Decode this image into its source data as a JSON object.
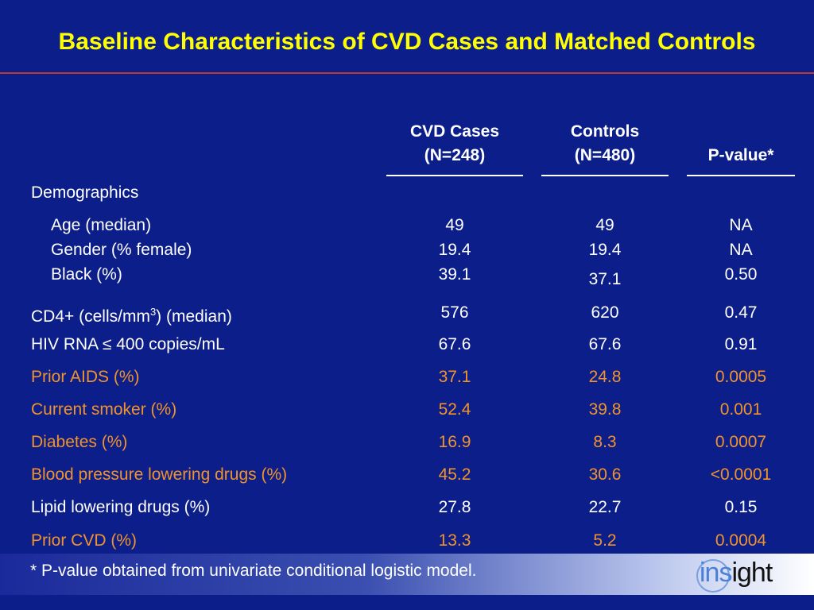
{
  "title": "Baseline Characteristics of CVD Cases and Matched Controls",
  "columns": {
    "cases": {
      "line1": "CVD Cases",
      "line2": "(N=248)"
    },
    "controls": {
      "line1": "Controls",
      "line2": "(N=480)"
    },
    "pvalue": {
      "line1": "",
      "line2": "P-value*"
    }
  },
  "section_demographics": "Demographics",
  "rows": [
    {
      "label": "Age (median)",
      "cases": "49",
      "controls": "49",
      "p": "NA"
    },
    {
      "label": "Gender (% female)",
      "cases": "19.4",
      "controls": "19.4",
      "p": "NA"
    },
    {
      "label": "Black (%)",
      "cases": "39.1",
      "controls": "37.1",
      "p": "0.50"
    },
    {
      "label": "CD4+ (cells/mm",
      "label_sup": "3",
      "label_after": ") (median)",
      "cases": "576",
      "controls": "620",
      "p": "0.47"
    },
    {
      "label": "HIV RNA ≤ 400 copies/mL",
      "cases": "67.6",
      "controls": "67.6",
      "p": "0.91"
    },
    {
      "label": "Prior AIDS (%)",
      "cases": "37.1",
      "controls": "24.8",
      "p": "0.0005"
    },
    {
      "label": "Current smoker (%)",
      "cases": "52.4",
      "controls": "39.8",
      "p": "0.001"
    },
    {
      "label": "Diabetes (%)",
      "cases": "16.9",
      "controls": "8.3",
      "p": "0.0007"
    },
    {
      "label": "Blood pressure lowering drugs (%)",
      "cases": "45.2",
      "controls": "30.6",
      "p": "<0.0001"
    },
    {
      "label": "Lipid lowering drugs (%)",
      "cases": "27.8",
      "controls": "22.7",
      "p": "0.15"
    },
    {
      "label": "Prior CVD (%)",
      "cases": "13.3",
      "controls": "5.2",
      "p": "0.0004"
    }
  ],
  "footnote": "* P-value obtained from univariate conditional logistic model.",
  "logo": {
    "part1": "ins",
    "part2": "ight"
  },
  "colors": {
    "background": "#0c1e8a",
    "title": "#ffff00",
    "highlight": "#f0932b",
    "text": "#ffffff"
  }
}
